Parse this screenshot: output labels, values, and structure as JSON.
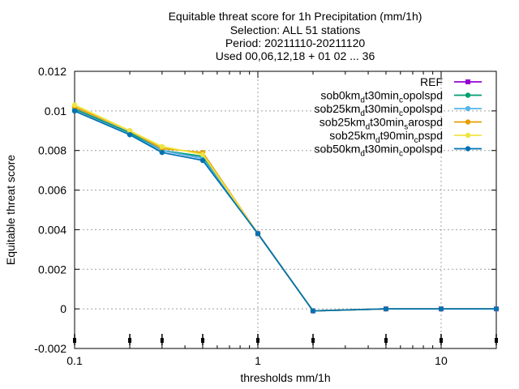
{
  "chart_data": {
    "type": "line",
    "title_lines": [
      "Equitable threat score  for 1h Precipitation (mm/1h)",
      "Selection: ALL     51 stations",
      "Period: 20211110-20211120",
      "Used 00,06,12,18 + 01 02 ... 36"
    ],
    "xlabel": "thresholds mm/1h",
    "ylabel": "Equitable threat score",
    "x_scale": "log",
    "xlim": [
      0.1,
      20
    ],
    "ylim": [
      -0.002,
      0.012
    ],
    "x_ticks": [
      {
        "value": 0.1,
        "label": "0.1"
      },
      {
        "value": 1,
        "label": "1"
      },
      {
        "value": 10,
        "label": "10"
      }
    ],
    "y_ticks": [
      {
        "value": -0.002,
        "label": "-0.002"
      },
      {
        "value": 0,
        "label": "0"
      },
      {
        "value": 0.002,
        "label": "0.002"
      },
      {
        "value": 0.004,
        "label": "0.004"
      },
      {
        "value": 0.006,
        "label": "0.006"
      },
      {
        "value": 0.008,
        "label": "0.008"
      },
      {
        "value": 0.01,
        "label": "0.01"
      },
      {
        "value": 0.012,
        "label": "0.012"
      }
    ],
    "grid": true,
    "legend_position": "top-right",
    "x": [
      0.1,
      0.2,
      0.3,
      0.5,
      1,
      2,
      5,
      10,
      20
    ],
    "series": [
      {
        "name": "REF",
        "legend_main": "REF",
        "color": "#9400d3",
        "values": [
          0.0101,
          0.0089,
          0.008,
          0.0076,
          0.0038,
          -0.0001,
          0.0,
          0.0,
          0.0
        ]
      },
      {
        "name": "sob0km_d t30min_c opolspd",
        "legend_parts": [
          [
            "sob0km",
            ""
          ],
          [
            "d",
            "sub"
          ],
          [
            "t30min",
            ""
          ],
          [
            "c",
            "sub"
          ],
          [
            "opolspd",
            ""
          ]
        ],
        "color": "#009e73",
        "values": [
          0.0101,
          0.0089,
          0.008,
          0.0077,
          0.0038,
          -0.0001,
          0.0,
          0.0,
          0.0
        ]
      },
      {
        "name": "sob25km_d t30min_c opolspd",
        "legend_parts": [
          [
            "sob25km",
            ""
          ],
          [
            "d",
            "sub"
          ],
          [
            "t30min",
            ""
          ],
          [
            "c",
            "sub"
          ],
          [
            "opolspd",
            ""
          ]
        ],
        "color": "#56b4e9",
        "values": [
          0.01,
          0.0088,
          0.008,
          0.0076,
          0.0038,
          -0.0001,
          0.0,
          0.0,
          0.0
        ]
      },
      {
        "name": "sob25km_d t30min_s arospd",
        "legend_parts": [
          [
            "sob25km",
            ""
          ],
          [
            "d",
            "sub"
          ],
          [
            "t30min",
            ""
          ],
          [
            "s",
            "sub"
          ],
          [
            "arospd",
            ""
          ]
        ],
        "color": "#e69f00",
        "values": [
          0.0102,
          0.009,
          0.0081,
          0.0079,
          0.0038,
          -0.0001,
          0.0,
          0.0,
          0.0
        ]
      },
      {
        "name": "sob25km_d t90min_c pspd",
        "legend_parts": [
          [
            "sob25km",
            ""
          ],
          [
            "d",
            "sub"
          ],
          [
            "t90min",
            ""
          ],
          [
            "c",
            "sub"
          ],
          [
            "pspd",
            ""
          ]
        ],
        "color": "#f0e442",
        "values": [
          0.0103,
          0.009,
          0.0082,
          0.0078,
          0.0038,
          -0.0001,
          0.0,
          0.0,
          0.0
        ]
      },
      {
        "name": "sob50km_d t30min_c opolspd",
        "legend_parts": [
          [
            "sob50km",
            ""
          ],
          [
            "d",
            "sub"
          ],
          [
            "t30min",
            ""
          ],
          [
            "c",
            "sub"
          ],
          [
            "opolspd",
            ""
          ]
        ],
        "color": "#0072b2",
        "values": [
          0.01,
          0.0088,
          0.0079,
          0.0075,
          0.0038,
          -0.0001,
          0.0,
          0.0,
          0.0
        ]
      }
    ],
    "bottom_markers_x": [
      0.1,
      0.2,
      0.3,
      0.5,
      1,
      2,
      5,
      10,
      20
    ]
  }
}
